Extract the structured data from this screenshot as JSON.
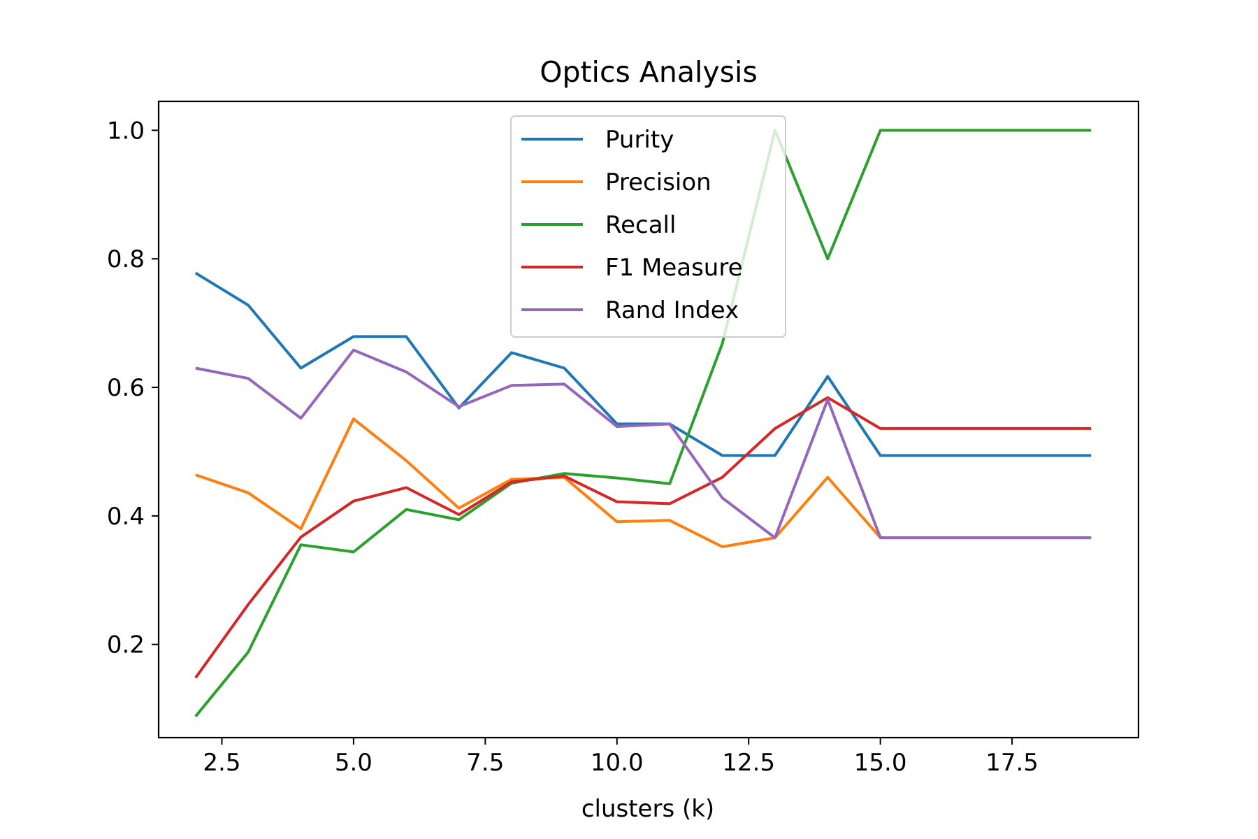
{
  "chart_data": {
    "type": "line",
    "title": "Optics Analysis",
    "xlabel": "clusters (k)",
    "ylabel": "",
    "xlim": [
      1.3,
      19.9
    ],
    "ylim": [
      0.055,
      1.045
    ],
    "xticks": [
      2.5,
      5.0,
      7.5,
      10.0,
      12.5,
      15.0,
      17.5
    ],
    "xtick_labels": [
      "2.5",
      "5.0",
      "7.5",
      "10.0",
      "12.5",
      "15.0",
      "17.5"
    ],
    "yticks": [
      0.2,
      0.4,
      0.6,
      0.8,
      1.0
    ],
    "ytick_labels": [
      "0.2",
      "0.4",
      "0.6",
      "0.8",
      "1.0"
    ],
    "grid": false,
    "legend_position": "upper-center",
    "x": [
      2,
      3,
      4,
      5,
      6,
      7,
      8,
      9,
      10,
      11,
      12,
      13,
      14,
      15,
      16,
      17,
      18,
      19
    ],
    "series": [
      {
        "name": "Purity",
        "color": "#1f77b4",
        "values": [
          0.778,
          0.728,
          0.63,
          0.679,
          0.679,
          0.568,
          0.654,
          0.63,
          0.543,
          0.543,
          0.494,
          0.494,
          0.617,
          0.494,
          0.494,
          0.494,
          0.494,
          0.494
        ]
      },
      {
        "name": "Precision",
        "color": "#ff7f0e",
        "values": [
          0.464,
          0.436,
          0.38,
          0.551,
          0.486,
          0.412,
          0.457,
          0.46,
          0.391,
          0.393,
          0.352,
          0.366,
          0.46,
          0.366,
          0.366,
          0.366,
          0.366,
          0.366
        ]
      },
      {
        "name": "Recall",
        "color": "#2ca02c",
        "values": [
          0.088,
          0.188,
          0.355,
          0.344,
          0.41,
          0.394,
          0.451,
          0.466,
          0.459,
          0.45,
          0.668,
          1.0,
          0.8,
          1.0,
          1.0,
          1.0,
          1.0,
          1.0
        ]
      },
      {
        "name": "F1 Measure",
        "color": "#d62728",
        "values": [
          0.148,
          0.262,
          0.367,
          0.423,
          0.444,
          0.402,
          0.453,
          0.462,
          0.422,
          0.419,
          0.46,
          0.536,
          0.584,
          0.536,
          0.536,
          0.536,
          0.536,
          0.536
        ]
      },
      {
        "name": "Rand Index",
        "color": "#9467bd",
        "values": [
          0.63,
          0.614,
          0.552,
          0.658,
          0.624,
          0.57,
          0.603,
          0.605,
          0.539,
          0.543,
          0.428,
          0.366,
          0.581,
          0.366,
          0.366,
          0.366,
          0.366,
          0.366
        ]
      }
    ]
  }
}
